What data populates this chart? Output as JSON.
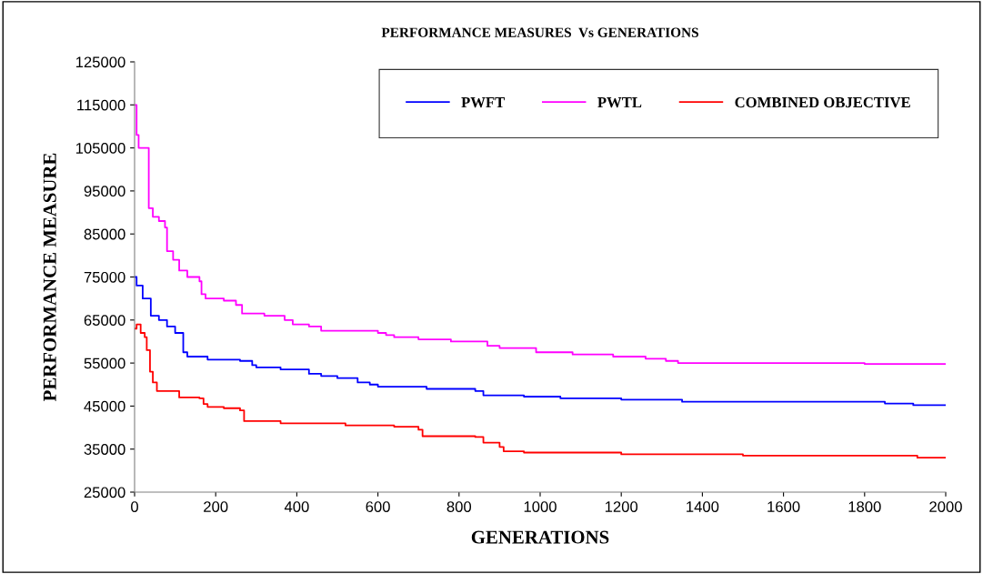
{
  "chart_data": {
    "type": "step",
    "title": "PERFORMANCE MEASURES  Vs GENERATIONS",
    "xlabel": "GENERATIONS",
    "ylabel": "PERFORMANCE MEASURE",
    "xlim": [
      0,
      2000
    ],
    "xticks": [
      0,
      200,
      400,
      600,
      800,
      1000,
      1200,
      1400,
      1600,
      1800,
      2000
    ],
    "ylim": [
      25000,
      125000
    ],
    "yticks": [
      25000,
      35000,
      45000,
      55000,
      65000,
      75000,
      85000,
      95000,
      105000,
      115000,
      125000
    ],
    "grid": false,
    "legend": "top right",
    "marker": "none",
    "line_style": "solid",
    "series": [
      {
        "name": "PWFT",
        "color": "#0000ff",
        "x": [
          0,
          5,
          20,
          40,
          60,
          80,
          100,
          120,
          130,
          180,
          260,
          290,
          300,
          360,
          430,
          460,
          500,
          550,
          580,
          600,
          720,
          840,
          860,
          960,
          1050,
          1200,
          1350,
          1850,
          1920,
          2000
        ],
        "values": [
          75000,
          73000,
          70000,
          66000,
          65000,
          63500,
          62000,
          57500,
          56500,
          55800,
          55500,
          54500,
          54000,
          53500,
          52500,
          52000,
          51500,
          50500,
          50000,
          49500,
          49000,
          48500,
          47500,
          47200,
          46800,
          46500,
          46000,
          45600,
          45200,
          45200
        ]
      },
      {
        "name": "PWTL",
        "color": "#ff00ff",
        "x": [
          0,
          5,
          10,
          35,
          45,
          60,
          75,
          80,
          95,
          110,
          130,
          160,
          165,
          175,
          220,
          250,
          265,
          320,
          370,
          390,
          430,
          460,
          600,
          620,
          640,
          700,
          780,
          870,
          900,
          990,
          1080,
          1180,
          1260,
          1310,
          1340,
          1800,
          2000
        ],
        "values": [
          115000,
          108000,
          105000,
          91000,
          89000,
          88000,
          86500,
          81000,
          79000,
          76500,
          75000,
          74000,
          71000,
          70000,
          69500,
          68500,
          66500,
          66000,
          65000,
          64000,
          63500,
          62500,
          62000,
          61500,
          61000,
          60500,
          60000,
          59000,
          58500,
          57500,
          57000,
          56500,
          56000,
          55500,
          55000,
          54800,
          54800
        ]
      },
      {
        "name": "COMBINED OBJECTIVE",
        "color": "#ff0000",
        "x": [
          0,
          5,
          15,
          25,
          30,
          38,
          45,
          55,
          110,
          160,
          170,
          180,
          220,
          260,
          270,
          360,
          520,
          640,
          700,
          710,
          840,
          860,
          900,
          910,
          960,
          1200,
          1500,
          1930,
          2000
        ],
        "values": [
          63000,
          64000,
          62000,
          61000,
          58000,
          53000,
          50500,
          48500,
          47000,
          46800,
          45500,
          44800,
          44500,
          44000,
          41500,
          41000,
          40500,
          40200,
          39500,
          38000,
          37800,
          36500,
          35500,
          34500,
          34200,
          33800,
          33500,
          33000,
          33000
        ]
      }
    ]
  }
}
